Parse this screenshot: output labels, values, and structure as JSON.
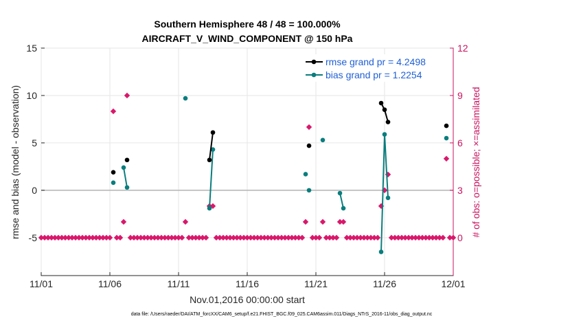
{
  "chart_data": {
    "type": "scatter",
    "title_line1": "Southern Hemisphere 48 / 48 = 100.000%",
    "title_line2": "AIRCRAFT_V_WIND_COMPONENT @ 150 hPa",
    "xlabel": "Nov.01,2016 00:00:00 start",
    "ylabel_left": "rmse and bias (model - observation)",
    "ylabel_right": "# of obs: o=possible; ×=assimilated",
    "xlim": [
      0,
      30
    ],
    "ylim_left": [
      -9,
      15
    ],
    "ylim_right": [
      0,
      12
    ],
    "right_axis_zero_at_left": -5,
    "x_ticks": [
      {
        "x": 0,
        "label": "11/01"
      },
      {
        "x": 5,
        "label": "11/06"
      },
      {
        "x": 10,
        "label": "11/11"
      },
      {
        "x": 15,
        "label": "11/16"
      },
      {
        "x": 20,
        "label": "11/21"
      },
      {
        "x": 25,
        "label": "11/26"
      },
      {
        "x": 30,
        "label": "12/01"
      }
    ],
    "y_ticks_left": [
      -5,
      0,
      5,
      10,
      15
    ],
    "y_ticks_right": [
      0,
      3,
      6,
      9,
      12
    ],
    "reference_line_y": 0,
    "legend": [
      {
        "label": "rmse grand pr = 4.2498",
        "color": "#000000"
      },
      {
        "label": "bias grand pr = 1.2254",
        "color": "#0a7d7d"
      }
    ],
    "series": [
      {
        "name": "rmse grand pr = 4.2498",
        "color": "#000000",
        "points": [
          [
            5.25,
            1.9
          ],
          [
            6.25,
            3.2
          ],
          [
            12.25,
            3.2
          ],
          [
            12.5,
            6.1
          ],
          [
            19.5,
            4.7
          ],
          [
            24.75,
            9.2
          ],
          [
            25,
            8.5
          ],
          [
            25.25,
            7.2
          ],
          [
            29.5,
            6.8
          ]
        ],
        "segments": [
          [
            [
              12.25,
              3.2
            ],
            [
              12.5,
              6.1
            ]
          ],
          [
            [
              24.75,
              9.2
            ],
            [
              25,
              8.5
            ],
            [
              25.25,
              7.2
            ]
          ]
        ]
      },
      {
        "name": "bias grand pr = 1.2254",
        "color": "#0a7d7d",
        "points": [
          [
            5.25,
            0.8
          ],
          [
            6.0,
            2.4
          ],
          [
            6.25,
            0.3
          ],
          [
            10.5,
            9.7
          ],
          [
            12.25,
            -1.9
          ],
          [
            12.5,
            4.3
          ],
          [
            19.25,
            1.7
          ],
          [
            19.5,
            0.0
          ],
          [
            20.5,
            5.3
          ],
          [
            21.75,
            -0.3
          ],
          [
            22.0,
            -1.9
          ],
          [
            24.75,
            -6.5
          ],
          [
            25.0,
            5.9
          ],
          [
            25.25,
            -0.8
          ],
          [
            29.5,
            5.5
          ]
        ],
        "segments": [
          [
            [
              6.0,
              2.4
            ],
            [
              6.25,
              0.3
            ]
          ],
          [
            [
              12.25,
              -1.9
            ],
            [
              12.5,
              4.3
            ]
          ],
          [
            [
              21.75,
              -0.3
            ],
            [
              22.0,
              -1.9
            ]
          ],
          [
            [
              24.75,
              -6.5
            ],
            [
              25.0,
              5.9
            ],
            [
              25.25,
              -0.8
            ]
          ]
        ]
      },
      {
        "name": "obs count",
        "color": "#d9186b",
        "points": [
          [
            5.25,
            8
          ],
          [
            6.0,
            1
          ],
          [
            6.25,
            9
          ],
          [
            10.5,
            1
          ],
          [
            12.25,
            2
          ],
          [
            12.5,
            2
          ],
          [
            19.25,
            1
          ],
          [
            19.5,
            7
          ],
          [
            20.5,
            1
          ],
          [
            21.75,
            1
          ],
          [
            22.0,
            1
          ],
          [
            24.75,
            2
          ],
          [
            25.0,
            3
          ],
          [
            25.25,
            4
          ],
          [
            29.5,
            5
          ]
        ]
      }
    ]
  },
  "footer": "data file: /Users/raeder/DAI/ATM_forcXX/CAM6_setup/f.e21.FHIST_BGC.f09_025.CAM6assim.011/Diags_NTrS_2016-11/obs_diag_output.nc"
}
